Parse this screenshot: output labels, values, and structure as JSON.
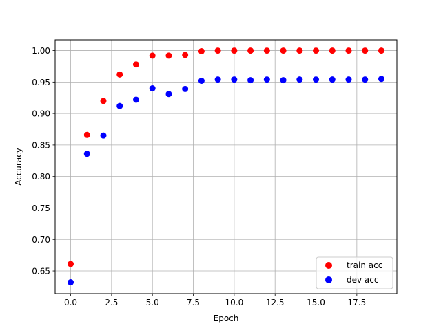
{
  "chart_data": {
    "type": "scatter",
    "title": "",
    "xlabel": "Epoch",
    "ylabel": "Accuracy",
    "xlim": [
      -0.95,
      19.95
    ],
    "ylim": [
      0.614,
      1.017
    ],
    "xticks": [
      0.0,
      2.5,
      5.0,
      7.5,
      10.0,
      12.5,
      15.0,
      17.5
    ],
    "xtick_labels": [
      "0.0",
      "2.5",
      "5.0",
      "7.5",
      "10.0",
      "12.5",
      "15.0",
      "17.5"
    ],
    "yticks": [
      0.65,
      0.7,
      0.75,
      0.8,
      0.85,
      0.9,
      0.95,
      1.0
    ],
    "ytick_labels": [
      "0.65",
      "0.70",
      "0.75",
      "0.80",
      "0.85",
      "0.90",
      "0.95",
      "1.00"
    ],
    "grid": true,
    "legend_position": "bottom-right",
    "x": [
      0,
      1,
      2,
      3,
      4,
      5,
      6,
      7,
      8,
      9,
      10,
      11,
      12,
      13,
      14,
      15,
      16,
      17,
      18,
      19
    ],
    "series": [
      {
        "name": "train acc",
        "color": "#ff0000",
        "values": [
          0.661,
          0.866,
          0.92,
          0.962,
          0.978,
          0.992,
          0.992,
          0.993,
          0.999,
          1.0,
          1.0,
          1.0,
          1.0,
          1.0,
          1.0,
          1.0,
          1.0,
          1.0,
          1.0,
          1.0
        ]
      },
      {
        "name": "dev acc",
        "color": "#0000ff",
        "values": [
          0.632,
          0.836,
          0.865,
          0.912,
          0.922,
          0.94,
          0.931,
          0.939,
          0.952,
          0.954,
          0.954,
          0.953,
          0.954,
          0.953,
          0.954,
          0.954,
          0.954,
          0.954,
          0.954,
          0.955
        ]
      }
    ]
  }
}
